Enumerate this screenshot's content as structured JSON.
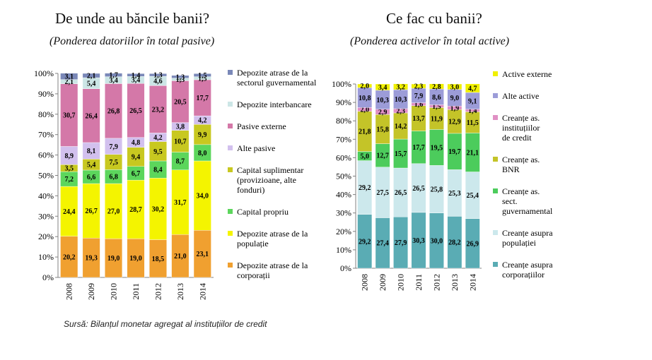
{
  "page": {
    "left_title": "De unde au băncile banii?",
    "left_subtitle": "(Ponderea datoriilor în total pasive)",
    "right_title": "Ce fac cu banii?",
    "right_subtitle": "(Ponderea activelor în total active)",
    "source": "Sursă: Bilanțul monetar agregat al instituțiilor de credit"
  },
  "chart_data": [
    {
      "type": "bar",
      "stacked": true,
      "title": "De unde au băncile banii?",
      "subtitle": "(Ponderea datoriilor în total pasive)",
      "categories": [
        "2008",
        "2009",
        "2010",
        "2011",
        "2012",
        "2013",
        "2014"
      ],
      "ylim": [
        0,
        100
      ],
      "y_ticks": [
        "0%",
        "10%",
        "20%",
        "30%",
        "40%",
        "50%",
        "60%",
        "70%",
        "80%",
        "90%",
        "100%"
      ],
      "legend_position": "right",
      "series": [
        {
          "name": "Depozite atrase de la corporații",
          "color": "#f0a030",
          "values": [
            20.2,
            19.3,
            19.0,
            19.0,
            18.5,
            21.0,
            23.1
          ],
          "labels": [
            "20,2",
            "19,3",
            "19,0",
            "19,0",
            "18,5",
            "21,0",
            "23,1"
          ]
        },
        {
          "name": "Depozite atrase de la populație",
          "color": "#f4f400",
          "values": [
            24.4,
            26.7,
            27.0,
            28.7,
            30.2,
            31.7,
            34.0
          ],
          "labels": [
            "24,4",
            "26,7",
            "27,0",
            "28,7",
            "30,2",
            "31,7",
            "34,0"
          ]
        },
        {
          "name": "Capital propriu",
          "color": "#5cd65c",
          "values": [
            7.2,
            6.6,
            6.8,
            6.7,
            8.4,
            8.7,
            8.0
          ],
          "labels": [
            "7,2",
            "6,6",
            "6,8",
            "6,7",
            "8,4",
            "8,7",
            "8,0"
          ]
        },
        {
          "name": "Capital suplimentar (provizioane, alte fonduri)",
          "color": "#c8c820",
          "values": [
            3.5,
            5.4,
            7.5,
            9.4,
            9.5,
            10.7,
            9.9
          ],
          "labels": [
            "3,5",
            "5,4",
            "7,5",
            "9,4",
            "9,5",
            "10,7",
            "9,9"
          ]
        },
        {
          "name": "Alte pasive",
          "color": "#d2c0ee",
          "values": [
            8.9,
            8.1,
            7.9,
            4.8,
            4.2,
            3.8,
            4.2
          ],
          "labels": [
            "8,9",
            "8,1",
            "7,9",
            "4,8",
            "4,2",
            "3,8",
            "4,2"
          ]
        },
        {
          "name": "Pasive externe",
          "color": "#d478a8",
          "values": [
            30.7,
            26.4,
            26.8,
            26.5,
            23.2,
            20.5,
            17.7
          ],
          "labels": [
            "30,7",
            "26,4",
            "26,8",
            "26,5",
            "23,2",
            "20,5",
            "17,7"
          ]
        },
        {
          "name": "Depozite interbancare",
          "color": "#cce6e6",
          "values": [
            2.1,
            5.4,
            3.4,
            3.4,
            4.6,
            1.3,
            1.5
          ],
          "labels": [
            "2,1",
            "5,4",
            "3,4",
            "3,4",
            "4,6",
            "1,3",
            "1,5"
          ]
        },
        {
          "name": "Depozite atrase de la sectorul guvernamental",
          "color": "#7a88b8",
          "values": [
            3.1,
            2.1,
            1.7,
            1.4,
            1.3,
            1.3,
            1.5
          ],
          "labels": [
            "3,1",
            "2,1",
            "1,7",
            "1,4",
            "1,3",
            "1,3",
            "1,5"
          ]
        }
      ]
    },
    {
      "type": "bar",
      "stacked": true,
      "title": "Ce fac cu banii?",
      "subtitle": "(Ponderea activelor în total active)",
      "categories": [
        "2008",
        "2009",
        "2010",
        "2011",
        "2012",
        "2013",
        "2014"
      ],
      "ylim": [
        0,
        100
      ],
      "y_ticks": [
        "0%",
        "10%",
        "20%",
        "30%",
        "40%",
        "50%",
        "60%",
        "70%",
        "80%",
        "90%",
        "100%"
      ],
      "legend_position": "right",
      "series": [
        {
          "name": "Creanțe asupra corporațiilor",
          "color": "#5aacb4",
          "values": [
            29.2,
            27.4,
            27.9,
            30.3,
            30.0,
            28.2,
            26.9
          ],
          "labels": [
            "29,2",
            "27,4",
            "27,9",
            "30,3",
            "30,0",
            "28,2",
            "26,9"
          ]
        },
        {
          "name": "Creanțe asupra populației",
          "color": "#cce8ec",
          "values": [
            29.2,
            27.5,
            26.5,
            26.5,
            25.8,
            25.3,
            25.4
          ],
          "labels": [
            "29,2",
            "27,5",
            "26,5",
            "26,5",
            "25,8",
            "25,3",
            "25,4"
          ]
        },
        {
          "name": "Creanțe as. sect. guvernamental",
          "color": "#4ccc5c",
          "values": [
            5.0,
            12.7,
            15.7,
            17.7,
            19.5,
            19.7,
            21.1
          ],
          "labels": [
            "5,0",
            "12,7",
            "15,7",
            "17,7",
            "19,5",
            "19,7",
            "21,1"
          ]
        },
        {
          "name": "Creanțe as. BNR",
          "color": "#c4c428",
          "values": [
            21.8,
            15.8,
            14.2,
            13.7,
            11.9,
            12.9,
            11.5
          ],
          "labels": [
            "21,8",
            "15,8",
            "14,2",
            "13,7",
            "11,9",
            "12,9",
            "11,5"
          ]
        },
        {
          "name": "Creanțe as. instituțiilor de credit",
          "color": "#e090c4",
          "values": [
            2.0,
            2.9,
            2.3,
            1.6,
            1.5,
            1.9,
            1.4
          ],
          "labels": [
            "2,0",
            "2,9",
            "2,3",
            "1,6",
            "1,5",
            "1,9",
            "1,4"
          ]
        },
        {
          "name": "Alte active",
          "color": "#9c9cd8",
          "values": [
            10.8,
            10.3,
            10.3,
            7.9,
            8.6,
            9.0,
            9.1
          ],
          "labels": [
            "10,8",
            "10,3",
            "10,3",
            "7,9",
            "8,6",
            "9,0",
            "9,1"
          ]
        },
        {
          "name": "Active externe",
          "color": "#f0f000",
          "values": [
            2.0,
            3.4,
            3.2,
            2.3,
            2.8,
            3.0,
            4.7
          ],
          "labels": [
            "2,0",
            "3,4",
            "3,2",
            "2,3",
            "2,8",
            "3,0",
            "4,7"
          ]
        }
      ]
    }
  ]
}
